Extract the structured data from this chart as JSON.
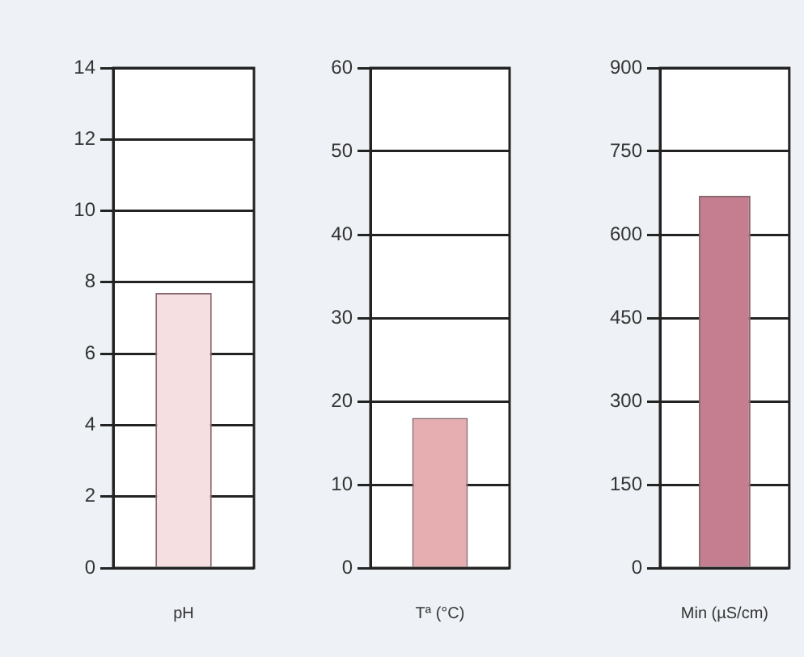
{
  "chart_data": [
    {
      "type": "bar",
      "categories": [
        "pH"
      ],
      "values": [
        7.7
      ],
      "color": "#f5dfe0",
      "ylim": [
        0,
        14
      ],
      "yticks": [
        0,
        2,
        4,
        6,
        8,
        10,
        12,
        14
      ],
      "grid": "y"
    },
    {
      "type": "bar",
      "categories": [
        "Tª (°C)"
      ],
      "values": [
        18
      ],
      "color": "#e6aeb1",
      "ylim": [
        0,
        60
      ],
      "yticks": [
        0,
        10,
        20,
        30,
        40,
        50,
        60
      ],
      "grid": "y"
    },
    {
      "type": "bar",
      "categories": [
        "Min (µS/cm)"
      ],
      "values": [
        670
      ],
      "color": "#c47e8f",
      "ylim": [
        0,
        900
      ],
      "yticks": [
        0,
        150,
        300,
        450,
        600,
        750,
        900
      ],
      "grid": "y"
    }
  ]
}
